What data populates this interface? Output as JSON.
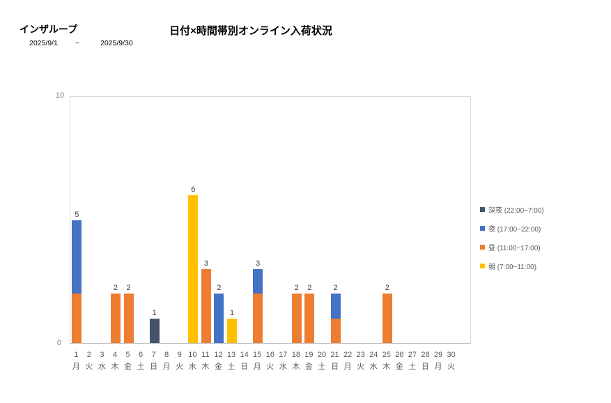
{
  "header": {
    "app_title": "インザループ",
    "chart_title": "日付×時間帯別オンライン入荷状況",
    "date_from": "2025/9/1",
    "date_separator": "~",
    "date_to": "2025/9/30"
  },
  "y_axis": {
    "max_label": "10",
    "min_label": "0"
  },
  "chart_data": {
    "type": "bar",
    "stacked": true,
    "title": "日付×時間帯別オンライン入荷状況",
    "xlabel": "",
    "ylabel": "",
    "ylim": [
      0,
      10
    ],
    "grid": false,
    "legend_position": "inside-top-right",
    "legend_order_top_to_bottom": [
      "深夜 (22:00~7:00)",
      "夜 (17:00~22:00)",
      "昼 (11:00~17:00)",
      "朝 (7:00~11:00)"
    ],
    "categories": [
      "1",
      "2",
      "3",
      "4",
      "5",
      "6",
      "7",
      "8",
      "9",
      "10",
      "11",
      "12",
      "13",
      "14",
      "15",
      "16",
      "17",
      "18",
      "19",
      "20",
      "21",
      "22",
      "23",
      "24",
      "25",
      "26",
      "27",
      "28",
      "29",
      "30"
    ],
    "weekday_labels": [
      "月",
      "火",
      "水",
      "木",
      "金",
      "土",
      "日",
      "月",
      "火",
      "水",
      "木",
      "金",
      "土",
      "日",
      "月",
      "火",
      "水",
      "木",
      "金",
      "土",
      "日",
      "月",
      "火",
      "水",
      "木",
      "金",
      "土",
      "日",
      "月",
      "火"
    ],
    "totals": [
      5,
      0,
      0,
      2,
      2,
      0,
      1,
      0,
      0,
      6,
      3,
      2,
      1,
      0,
      3,
      0,
      0,
      2,
      2,
      0,
      2,
      0,
      0,
      0,
      2,
      0,
      0,
      0,
      0,
      0
    ],
    "series": [
      {
        "key": "asa",
        "name": "朝 (7:00~11:00)",
        "color": "#FFC000",
        "values": [
          0,
          0,
          0,
          0,
          0,
          0,
          0,
          0,
          0,
          6,
          0,
          0,
          1,
          0,
          0,
          0,
          0,
          0,
          0,
          0,
          0,
          0,
          0,
          0,
          0,
          0,
          0,
          0,
          0,
          0
        ]
      },
      {
        "key": "hiru",
        "name": "昼 (11:00~17:00)",
        "color": "#ED7D31",
        "values": [
          2,
          0,
          0,
          2,
          2,
          0,
          0,
          0,
          0,
          0,
          3,
          0,
          0,
          0,
          2,
          0,
          0,
          2,
          2,
          0,
          1,
          0,
          0,
          0,
          2,
          0,
          0,
          0,
          0,
          0
        ]
      },
      {
        "key": "yoru",
        "name": "夜 (17:00~22:00)",
        "color": "#4472C4",
        "values": [
          3,
          0,
          0,
          0,
          0,
          0,
          0,
          0,
          0,
          0,
          0,
          2,
          0,
          0,
          1,
          0,
          0,
          0,
          0,
          0,
          1,
          0,
          0,
          0,
          0,
          0,
          0,
          0,
          0,
          0
        ]
      },
      {
        "key": "shinya",
        "name": "深夜 (22:00~7:00)",
        "color": "#44546A",
        "values": [
          0,
          0,
          0,
          0,
          0,
          0,
          1,
          0,
          0,
          0,
          0,
          0,
          0,
          0,
          0,
          0,
          0,
          0,
          0,
          0,
          0,
          0,
          0,
          0,
          0,
          0,
          0,
          0,
          0,
          0
        ]
      }
    ]
  }
}
